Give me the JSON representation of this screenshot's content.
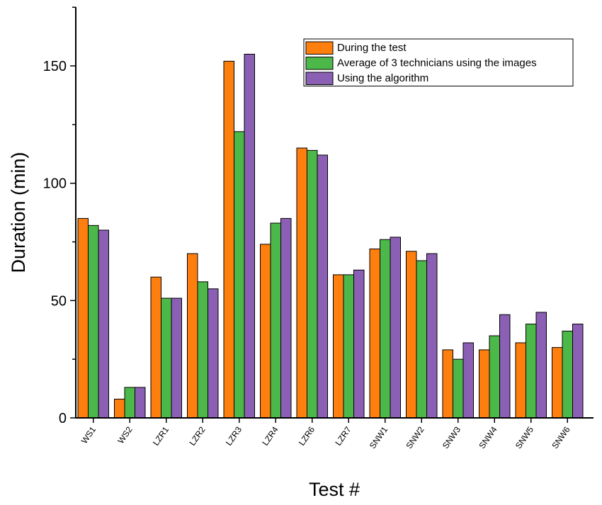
{
  "chart_data": {
    "type": "bar",
    "title": "",
    "xlabel": "Test #",
    "ylabel": "Duration (min)",
    "ylim": [
      0,
      175
    ],
    "yticks": [
      0,
      50,
      100,
      150
    ],
    "grid": false,
    "legend_position": "top-right",
    "categories": [
      "WS1",
      "WS2",
      "LZR1",
      "LZR2",
      "LZR3",
      "LZR4",
      "LZR6",
      "LZR7",
      "SNW1",
      "SNW2",
      "SNW3",
      "SNW4",
      "SNW5",
      "SNW6"
    ],
    "series": [
      {
        "name": "During the test",
        "color": "#ff7f0e",
        "values": [
          85,
          8,
          60,
          70,
          152,
          74,
          115,
          61,
          72,
          71,
          29,
          29,
          32,
          30
        ]
      },
      {
        "name": "Average of 3 technicians using the images",
        "color": "#4cb849",
        "values": [
          82,
          13,
          51,
          58,
          122,
          83,
          114,
          61,
          76,
          67,
          25,
          35,
          40,
          37
        ]
      },
      {
        "name": "Using the algorithm",
        "color": "#8a5fb4",
        "values": [
          80,
          13,
          51,
          55,
          155,
          85,
          112,
          63,
          77,
          70,
          32,
          44,
          45,
          40
        ]
      }
    ]
  }
}
